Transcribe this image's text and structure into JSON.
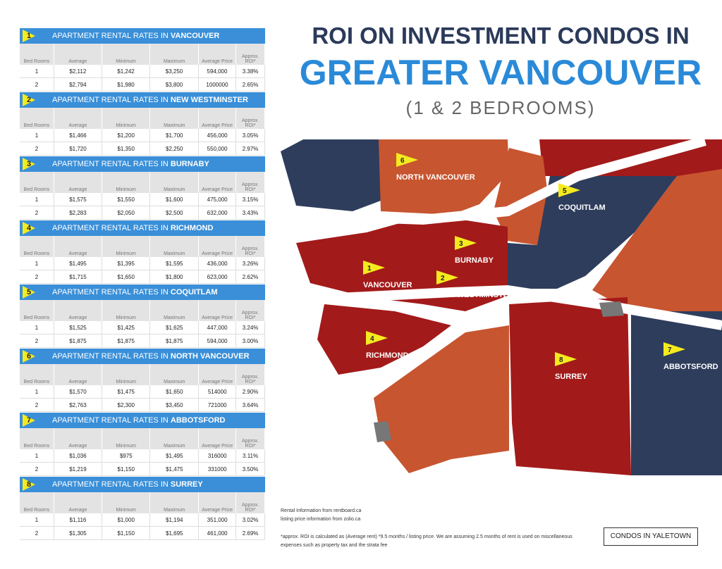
{
  "title": {
    "line1": "ROI ON INVESTMENT CONDOS IN",
    "line2": "GREATER VANCOUVER",
    "line3": "(1 & 2 BEDROOMS)"
  },
  "table_title_prefix": "APARTMENT RENTAL RATES IN",
  "columns": [
    "Bed Rooms",
    "Average",
    "Minimum",
    "Maximum",
    "Average Price",
    "Approx. ROI*"
  ],
  "tables": [
    {
      "number": "1",
      "city": "VANCOUVER",
      "rows": [
        [
          "1",
          "$2,112",
          "$1,242",
          "$3,250",
          "594,000",
          "3.38%"
        ],
        [
          "2",
          "$2,794",
          "$1,980",
          "$3,800",
          "1000000",
          "2.65%"
        ]
      ]
    },
    {
      "number": "2",
      "city": "NEW WESTMINSTER",
      "rows": [
        [
          "1",
          "$1,466",
          "$1,200",
          "$1,700",
          "456,000",
          "3.05%"
        ],
        [
          "2",
          "$1,720",
          "$1,350",
          "$2,250",
          "550,000",
          "2.97%"
        ]
      ]
    },
    {
      "number": "3",
      "city": "BURNABY",
      "rows": [
        [
          "1",
          "$1,575",
          "$1,550",
          "$1,600",
          "475,000",
          "3.15%"
        ],
        [
          "2",
          "$2,283",
          "$2,050",
          "$2,500",
          "632,000",
          "3.43%"
        ]
      ]
    },
    {
      "number": "4",
      "city": "RICHMOND",
      "rows": [
        [
          "1",
          "$1,495",
          "$1,395",
          "$1,595",
          "436,000",
          "3.26%"
        ],
        [
          "2",
          "$1,715",
          "$1,650",
          "$1,800",
          "623,000",
          "2.62%"
        ]
      ]
    },
    {
      "number": "5",
      "city": "COQUITLAM",
      "rows": [
        [
          "1",
          "$1,525",
          "$1,425",
          "$1,625",
          "447,000",
          "3.24%"
        ],
        [
          "2",
          "$1,875",
          "$1,875",
          "$1,875",
          "594,000",
          "3.00%"
        ]
      ]
    },
    {
      "number": "6",
      "city": "NORTH VANCOUVER",
      "rows": [
        [
          "1",
          "$1,570",
          "$1,475",
          "$1,650",
          "514000",
          "2.90%"
        ],
        [
          "2",
          "$2,763",
          "$2,300",
          "$3,450",
          "721000",
          "3.64%"
        ]
      ]
    },
    {
      "number": "7",
      "city": "ABBOTSFORD",
      "rows": [
        [
          "1",
          "$1,036",
          "$975",
          "$1,495",
          "316000",
          "3.11%"
        ],
        [
          "2",
          "$1,219",
          "$1,150",
          "$1,475",
          "331000",
          "3.50%"
        ]
      ]
    },
    {
      "number": "8",
      "city": "SURREY",
      "rows": [
        [
          "1",
          "$1,116",
          "$1,000",
          "$1,194",
          "351,000",
          "3.02%"
        ],
        [
          "2",
          "$1,305",
          "$1,150",
          "$1,695",
          "461,000",
          "2.69%"
        ]
      ]
    }
  ],
  "map_labels": [
    {
      "number": "6",
      "name": "NORTH VANCOUVER"
    },
    {
      "number": "5",
      "name": "COQUITLAM"
    },
    {
      "number": "3",
      "name": "BURNABY"
    },
    {
      "number": "1",
      "name": "VANCOUVER"
    },
    {
      "number": "2",
      "name": "NEW WESTMINSTER"
    },
    {
      "number": "4",
      "name": "RICHMOND"
    },
    {
      "number": "8",
      "name": "SURREY"
    },
    {
      "number": "7",
      "name": "ABBOTSFORD"
    }
  ],
  "sources": [
    "Rental Information from rentboard.ca",
    "listing price information from zolio.ca"
  ],
  "footnote": "*approx. ROI is calculated as (Average rent) *9.5 months / listing price.  We are assuming 2.5 months of rent is used on miscellaneous expenses such as property tax and the strata fee",
  "logo": "CONDOS IN YALETOWN"
}
